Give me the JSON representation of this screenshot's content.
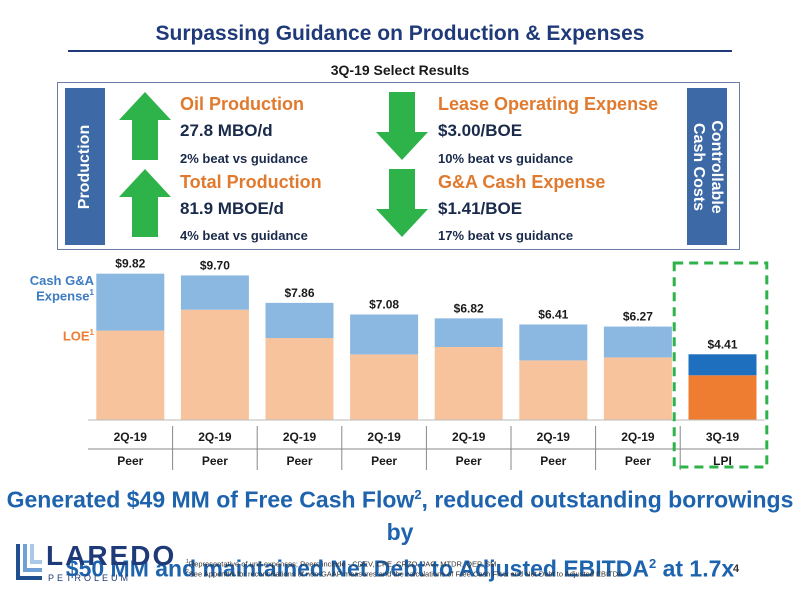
{
  "header": {
    "title": "Surpassing Guidance on Production & Expenses",
    "subtitle": "3Q-19 Select Results"
  },
  "results": {
    "left_label": "Production",
    "right_label": "Controllable Cash Costs",
    "kpis": [
      {
        "heading": "Oil Production",
        "value": "27.8 MBO/d",
        "note": "2% beat vs guidance",
        "direction": "up"
      },
      {
        "heading": "Total Production",
        "value": "81.9 MBOE/d",
        "note": "4% beat vs guidance",
        "direction": "up"
      },
      {
        "heading": "Lease Operating Expense",
        "value": "$3.00/BOE",
        "note": "10% beat vs guidance",
        "direction": "down"
      },
      {
        "heading": "G&A Cash Expense",
        "value": "$1.41/BOE",
        "note": "17% beat vs guidance",
        "direction": "down"
      }
    ],
    "arrow_color": "#2db34a"
  },
  "legend": {
    "cash_ga": "Cash G&A",
    "cash_ga_line2": "Expense",
    "loe": "LOE",
    "footnote_mark": "1"
  },
  "chart_data": {
    "type": "bar",
    "stacked": true,
    "categories": [
      "2Q-19",
      "2Q-19",
      "2Q-19",
      "2Q-19",
      "2Q-19",
      "2Q-19",
      "2Q-19",
      "3Q-19"
    ],
    "category_sublabels": [
      "Peer",
      "Peer",
      "Peer",
      "Peer",
      "Peer",
      "Peer",
      "Peer",
      "LPI"
    ],
    "totals": [
      9.82,
      9.7,
      7.86,
      7.08,
      6.82,
      6.41,
      6.27,
      4.41
    ],
    "total_labels": [
      "$9.82",
      "$9.70",
      "$7.86",
      "$7.08",
      "$6.82",
      "$6.41",
      "$6.27",
      "$4.41"
    ],
    "series": [
      {
        "name": "LOE",
        "values": [
          6.0,
          7.4,
          5.5,
          4.4,
          4.9,
          4.0,
          4.2,
          3.0
        ]
      },
      {
        "name": "Cash G&A Expense",
        "values": [
          3.82,
          2.3,
          2.36,
          2.68,
          1.92,
          2.41,
          2.07,
          1.41
        ]
      }
    ],
    "ylim": [
      0,
      10.2
    ],
    "highlight_index": 7,
    "colors": {
      "peer_loe": "#f7c39d",
      "peer_ga": "#8ab8e0",
      "lpi_loe": "#ee7d32",
      "lpi_ga": "#1f6fbf",
      "highlight_border": "#2db34a"
    }
  },
  "message": {
    "line1": "Generated $49 MM of Free Cash Flow",
    "sup1": "2",
    "line1b": ", reduced outstanding borrowings by",
    "line2": "$50 MM and maintained Net Debt to Adjusted EBITDA",
    "sup2": "2",
    "line2b": " at 1.7x"
  },
  "logo": {
    "name": "LAREDO",
    "sub": "PETROLEUM"
  },
  "footnotes": [
    {
      "mark": "1",
      "text": "Representative of unit expenses; Peers include - CDEV, CPE, CRZO, JAG, MTDR, QEP, SM"
    },
    {
      "mark": "2",
      "text": "See Appendix for reconciliations of non-GAAP measures and the calculations of Free Cash Flow and Net Debt to Adjusted EBITDA"
    }
  ],
  "page_number": "4"
}
